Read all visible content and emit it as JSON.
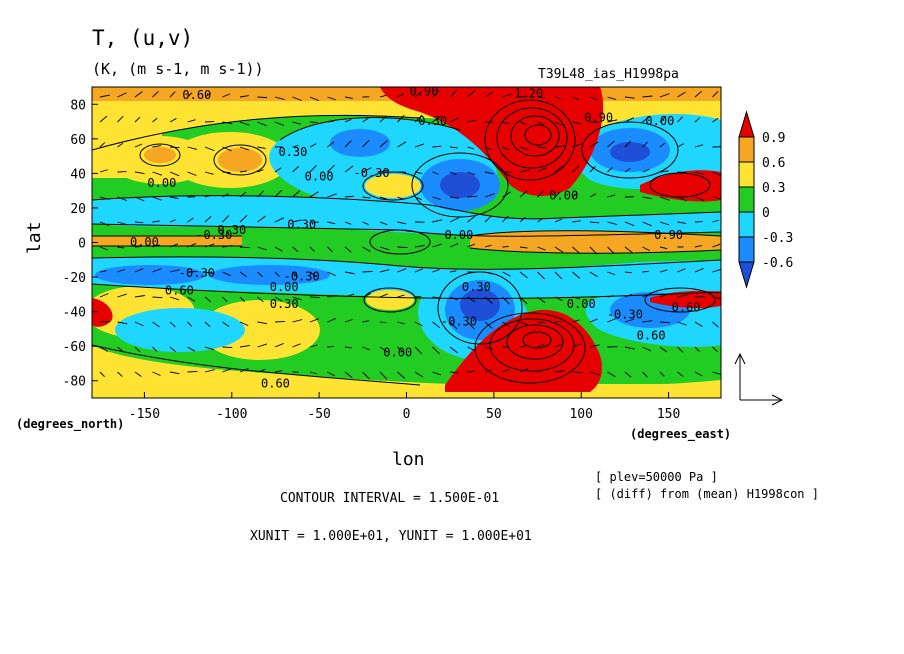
{
  "chart_data": {
    "type": "heatmap",
    "title": "T, (u,v)",
    "subtitle": "(K, (m s-1, m s-1))",
    "experiment": "T39L48_ias_H1998pa",
    "xlabel": "lon",
    "ylabel": "lat",
    "x_unit_label": "(degrees_east)",
    "y_unit_label": "(degrees_north)",
    "xlim": [
      -180,
      180
    ],
    "ylim": [
      -90,
      90
    ],
    "x_ticks": [
      -150,
      -100,
      -50,
      0,
      50,
      100,
      150
    ],
    "y_ticks": [
      80,
      60,
      40,
      20,
      0,
      -20,
      -40,
      -60,
      -80
    ],
    "colorbar": {
      "levels": [
        0.9,
        0.6,
        0.3,
        0,
        -0.3,
        -0.6
      ],
      "colors": [
        "#e60000",
        "#f5a623",
        "#ffe333",
        "#22cc22",
        "#1fd6ff",
        "#1a8cff",
        "#1e4fd6"
      ]
    },
    "contour_labels": [
      "0.60",
      "0.90",
      "1.20",
      "0.30",
      "0.90",
      "0.00",
      "0.30",
      "0.00",
      "-0.30",
      "0.00",
      "0.30",
      "0.30",
      "-0.30",
      "0.00",
      "-0.30",
      "-0.30",
      "0.00",
      "0.60",
      "0.30",
      "-0.30",
      "0.00",
      "-0.30",
      "0.00",
      "0.30",
      "0.00",
      "0.60",
      "0.90",
      "0.00",
      "0.60",
      "0.60"
    ],
    "info_plev": "[ plev=50000 Pa ]",
    "info_diff": "[ (diff) from (mean) H1998con ]",
    "contour_interval": "CONTOUR INTERVAL = 1.500E-01",
    "units": "XUNIT = 1.000E+01, YUNIT = 1.000E+01",
    "grid": false
  }
}
